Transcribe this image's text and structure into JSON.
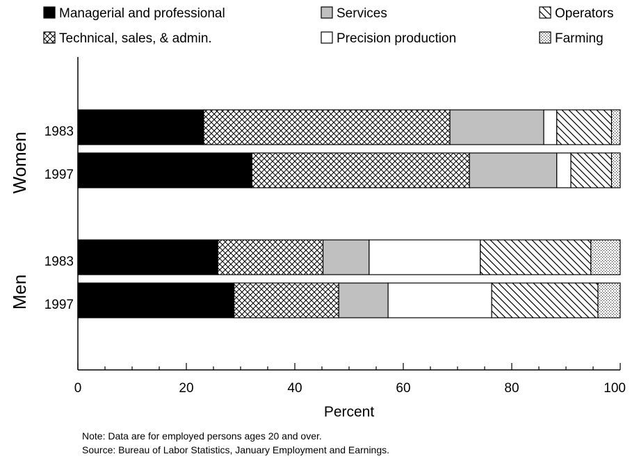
{
  "chart_data": {
    "type": "bar",
    "orientation": "horizontal",
    "stacked": true,
    "xlabel": "Percent",
    "xlim": [
      0,
      100
    ],
    "xticks": [
      "0",
      "20",
      "40",
      "60",
      "80",
      "100"
    ],
    "grid": false,
    "legend_position": "top",
    "groups": [
      {
        "label": "Women",
        "categories": [
          "1983",
          "1997"
        ]
      },
      {
        "label": "Men",
        "categories": [
          "1983",
          "1997"
        ]
      }
    ],
    "series": [
      {
        "name": "Managerial and professional",
        "pattern": "solid-black",
        "values": [
          23.2,
          32.1,
          25.8,
          28.8
        ]
      },
      {
        "name": "Technical, sales, & admin.",
        "pattern": "crosshatch",
        "values": [
          45.4,
          40.1,
          19.4,
          19.3
        ]
      },
      {
        "name": "Services",
        "pattern": "gray",
        "values": [
          17.3,
          16.1,
          8.5,
          9.1
        ]
      },
      {
        "name": "Precision production",
        "pattern": "white",
        "values": [
          2.4,
          2.6,
          20.5,
          19.1
        ]
      },
      {
        "name": "Operators",
        "pattern": "diagonal-hatch",
        "values": [
          10.1,
          7.5,
          20.4,
          19.6
        ]
      },
      {
        "name": "Farming",
        "pattern": "dotted",
        "values": [
          1.6,
          1.6,
          5.4,
          4.1
        ]
      }
    ],
    "notes": [
      "Note: Data are for employed persons ages 20 and over.",
      "Source: Bureau of Labor Statistics, January Employment and Earnings."
    ]
  },
  "colors": {
    "managerial": "#000000",
    "services": "#c0c0c0",
    "background": "#ffffff",
    "outline": "#000000"
  }
}
